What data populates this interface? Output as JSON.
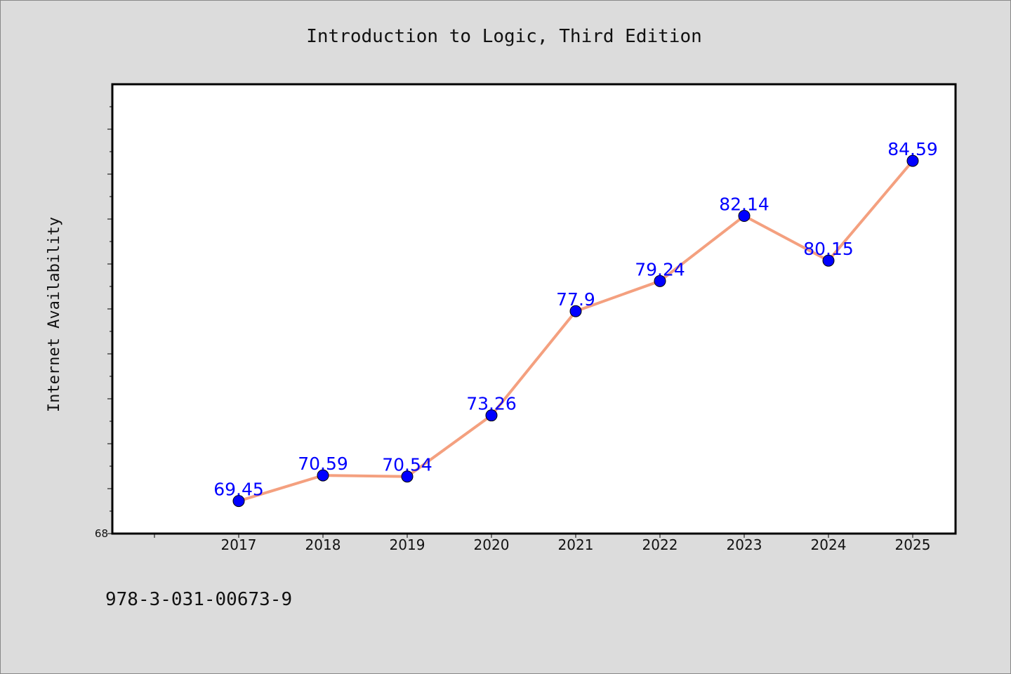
{
  "chart_data": {
    "type": "line",
    "title": "Introduction to Logic, Third Edition",
    "ylabel": "Internet Availability",
    "xlabel": "",
    "categories": [
      "2017",
      "2018",
      "2019",
      "2020",
      "2021",
      "2022",
      "2023",
      "2024",
      "2025"
    ],
    "series": [
      {
        "values": [
          69.45,
          70.59,
          70.54,
          73.26,
          77.9,
          79.24,
          82.14,
          80.15,
          84.59
        ],
        "data_labels": [
          "69.45",
          "70.59",
          "70.54",
          "73.26",
          "77.9",
          "79.24",
          "82.14",
          "80.15",
          "84.59"
        ],
        "line_color": "#f4a07f",
        "marker_color": "#0000ff"
      }
    ],
    "ylim": [
      68,
      88
    ],
    "y_tick_labels": [
      "68"
    ],
    "grid": false,
    "legend": "none"
  },
  "footer": {
    "isbn": "978-3-031-00673-9"
  },
  "colors": {
    "background": "#dcdcdc",
    "plot_background": "#ffffff",
    "label_color": "#0000ff"
  }
}
